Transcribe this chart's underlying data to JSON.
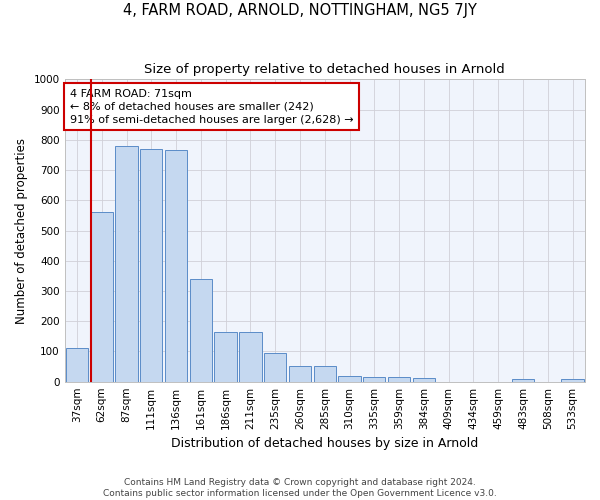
{
  "title": "4, FARM ROAD, ARNOLD, NOTTINGHAM, NG5 7JY",
  "subtitle": "Size of property relative to detached houses in Arnold",
  "xlabel": "Distribution of detached houses by size in Arnold",
  "ylabel": "Number of detached properties",
  "categories": [
    "37sqm",
    "62sqm",
    "87sqm",
    "111sqm",
    "136sqm",
    "161sqm",
    "186sqm",
    "211sqm",
    "235sqm",
    "260sqm",
    "285sqm",
    "310sqm",
    "335sqm",
    "359sqm",
    "384sqm",
    "409sqm",
    "434sqm",
    "459sqm",
    "483sqm",
    "508sqm",
    "533sqm"
  ],
  "values": [
    110,
    560,
    780,
    770,
    765,
    340,
    163,
    163,
    95,
    52,
    52,
    18,
    15,
    15,
    12,
    0,
    0,
    0,
    9,
    0,
    9
  ],
  "bar_color": "#c5d8f0",
  "bar_edge_color": "#5b8cc8",
  "vline_bar_index": 1,
  "vline_color": "#cc0000",
  "annotation_line1": "4 FARM ROAD: 71sqm",
  "annotation_line2": "← 8% of detached houses are smaller (242)",
  "annotation_line3": "91% of semi-detached houses are larger (2,628) →",
  "annotation_box_color": "#cc0000",
  "ylim": [
    0,
    1000
  ],
  "yticks": [
    0,
    100,
    200,
    300,
    400,
    500,
    600,
    700,
    800,
    900,
    1000
  ],
  "footer_line1": "Contains HM Land Registry data © Crown copyright and database right 2024.",
  "footer_line2": "Contains public sector information licensed under the Open Government Licence v3.0.",
  "title_fontsize": 10.5,
  "subtitle_fontsize": 9.5,
  "xlabel_fontsize": 9,
  "ylabel_fontsize": 8.5,
  "tick_fontsize": 7.5,
  "annotation_fontsize": 8,
  "footer_fontsize": 6.5
}
